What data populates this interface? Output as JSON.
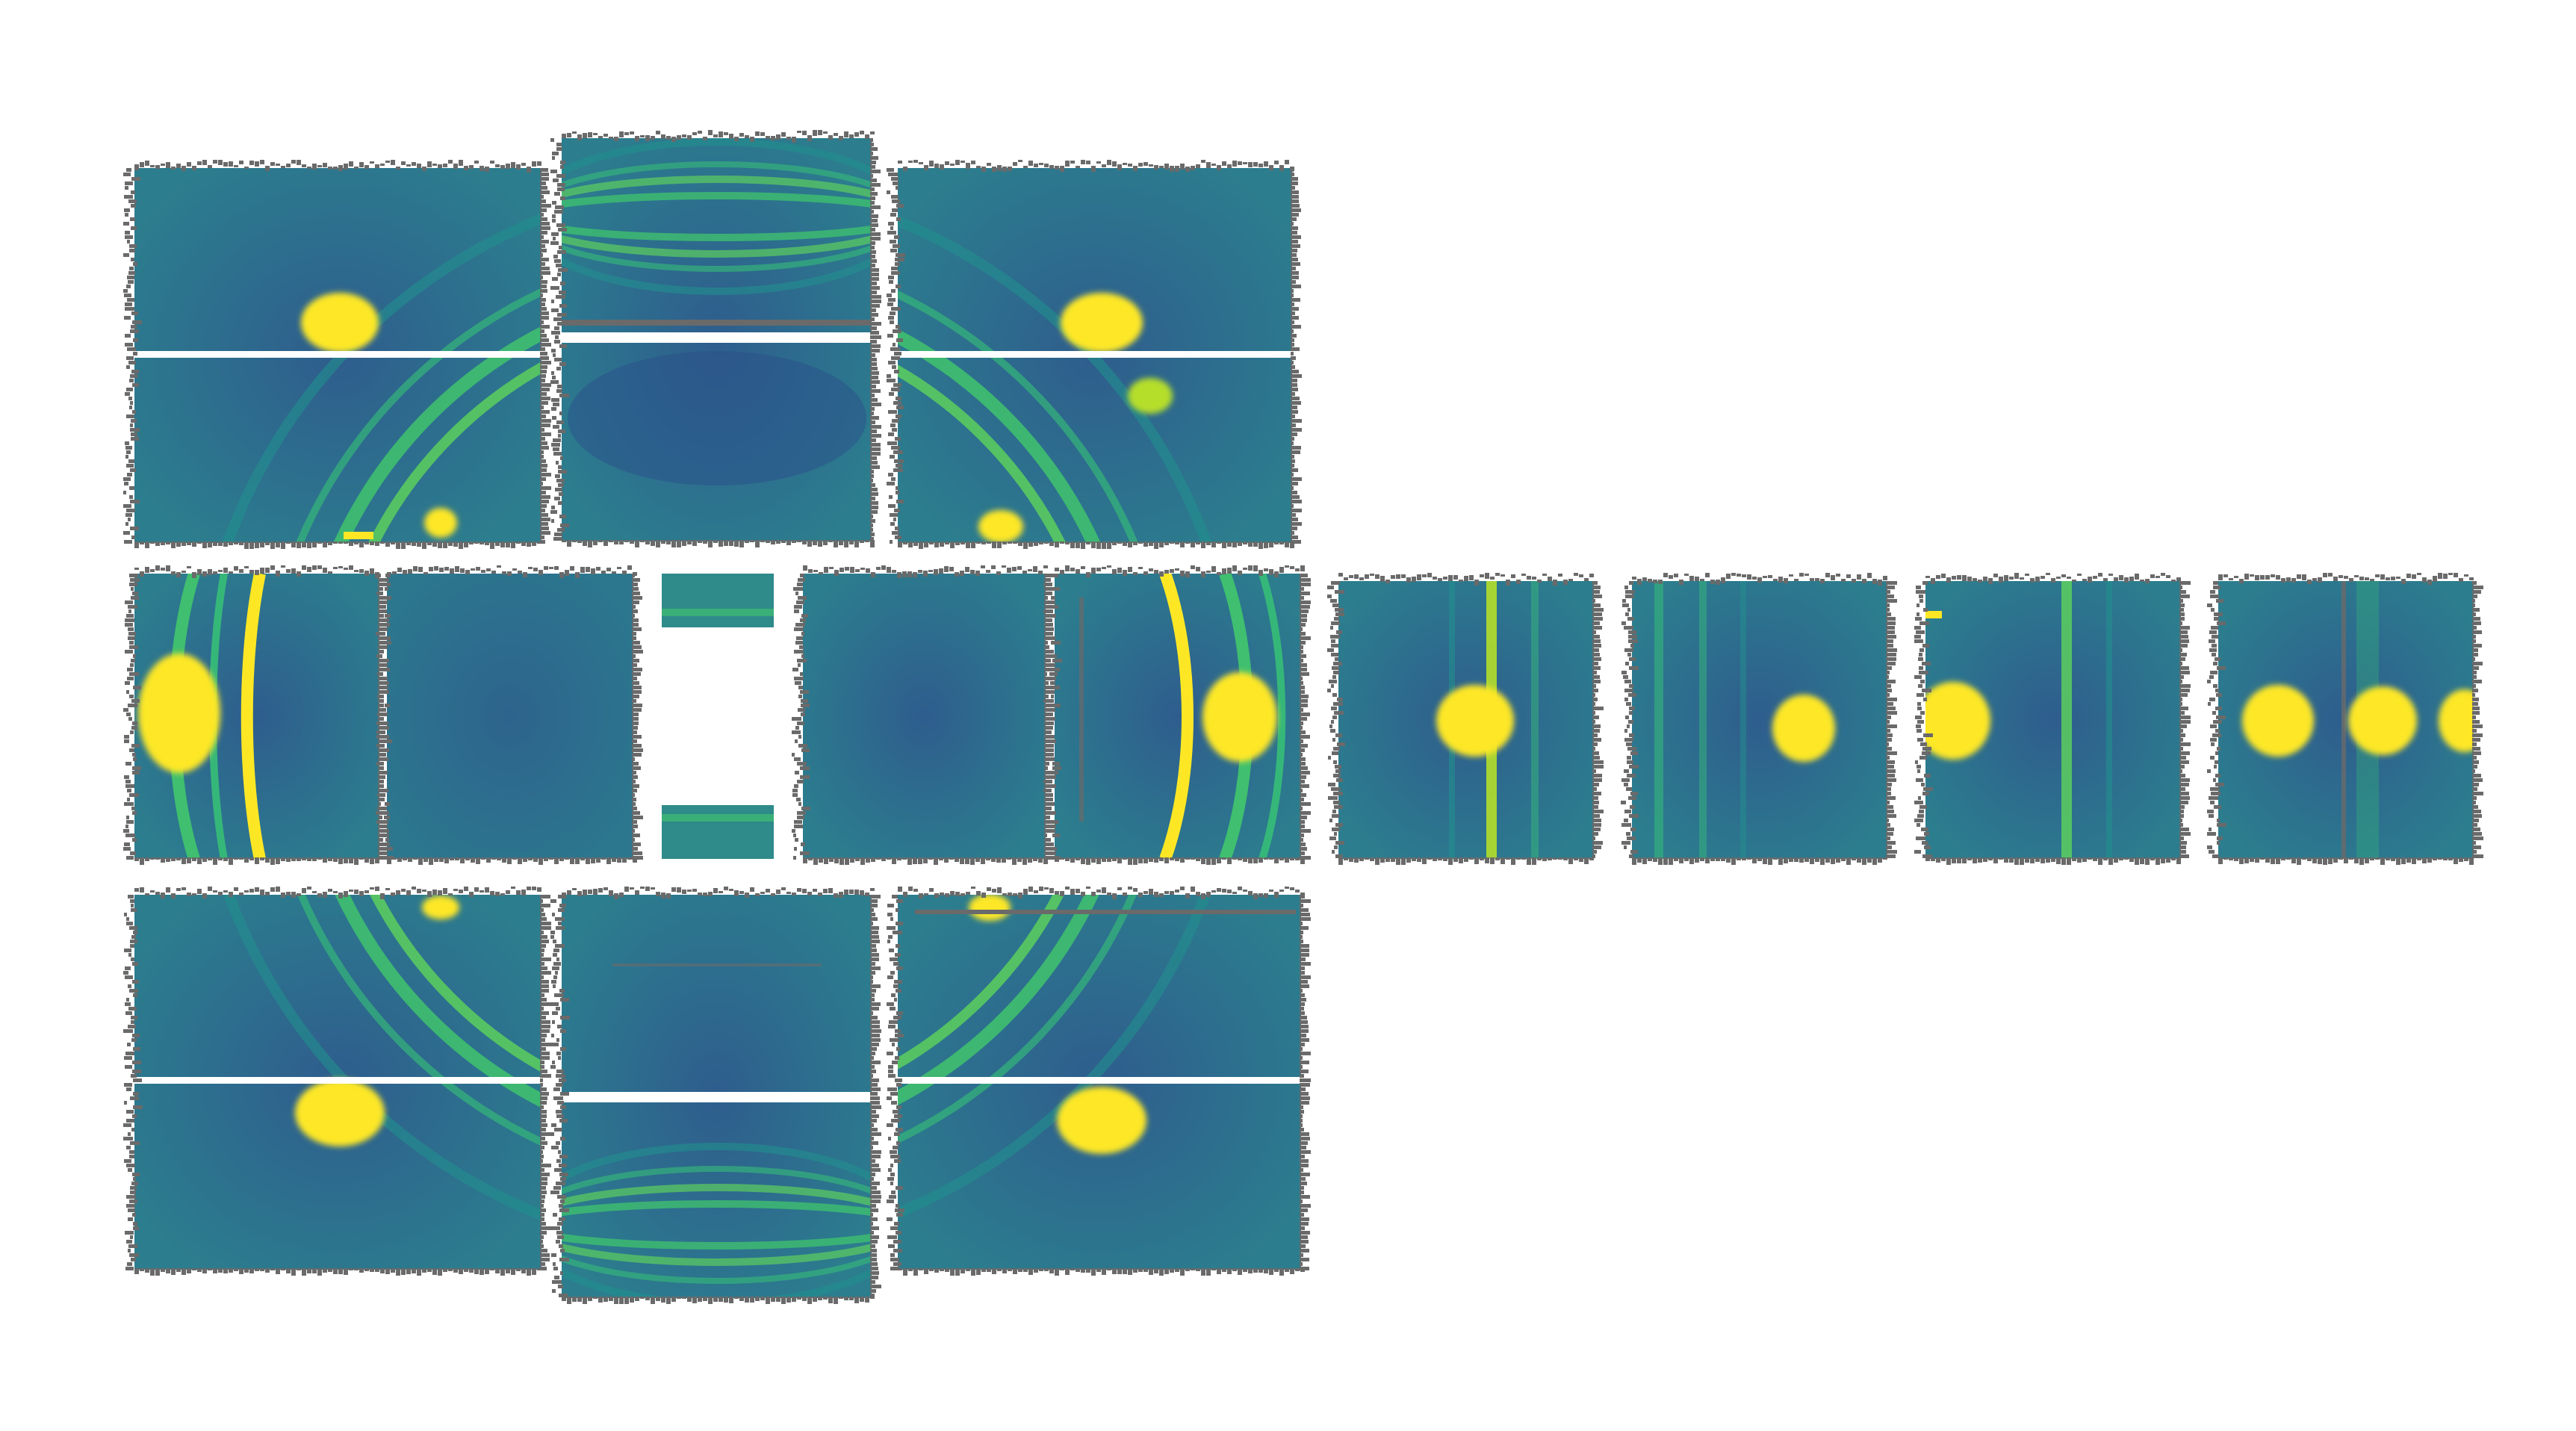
{
  "image": {
    "kind": "x-ray diffraction detector mosaic",
    "colormap": "viridis-like",
    "colors": {
      "background": "#ffffff",
      "tile_bg_dark": "#2f5f8c",
      "tile_bg": "#2f6f8e",
      "tile_bg_light": "#2f8a8a",
      "ring": "#3fbf6f",
      "ring_bright": "#b5de2b",
      "peak": "#fde725",
      "edge_noise": "#6a6a6a",
      "gap": "#ffffff"
    }
  }
}
